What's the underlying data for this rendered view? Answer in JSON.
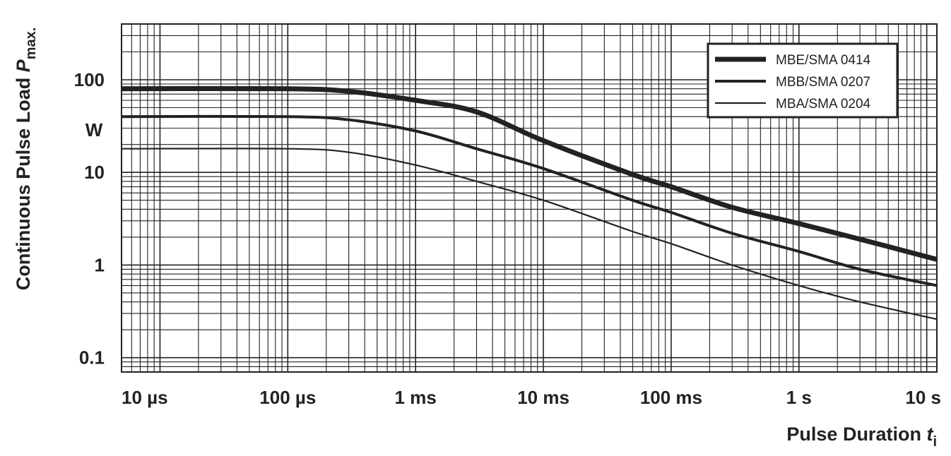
{
  "chart_data": {
    "type": "line",
    "xscale": "log",
    "yscale": "log",
    "xlim": [
      "5 µs",
      "12 s"
    ],
    "ylim": [
      0.07,
      400
    ],
    "grid": true,
    "legend_position": "top-right",
    "xlabel": {
      "text": "Pulse Duration ",
      "var": "t",
      "sub": "i"
    },
    "ylabel": {
      "text": "Continuous Pulse Load ",
      "var": "P",
      "sub": "max."
    },
    "x_ticks": [
      "10 µs",
      "100 µs",
      "1 ms",
      "10 ms",
      "100 ms",
      "1 s",
      "10 s"
    ],
    "y_ticks": [
      "100",
      "10",
      "1",
      "0.1"
    ],
    "y_unit": "W",
    "series": [
      {
        "name": "MBE/SMA 0414",
        "color": "#222222",
        "x": [
          "5 µs",
          "100 µs",
          "300 µs",
          "1 ms",
          "3 ms",
          "10 ms",
          "50 ms",
          "100 ms",
          "300 ms",
          "1 s",
          "3 s",
          "12 s"
        ],
        "y": [
          80,
          80,
          75,
          60,
          45,
          22,
          9.5,
          7,
          4.2,
          2.8,
          1.9,
          1.15
        ]
      },
      {
        "name": "MBB/SMA 0207",
        "color": "#222222",
        "x": [
          "5 µs",
          "100 µs",
          "300 µs",
          "1 ms",
          "3 ms",
          "10 ms",
          "50 ms",
          "100 ms",
          "300 ms",
          "1 s",
          "3 s",
          "12 s"
        ],
        "y": [
          40,
          40,
          37,
          28,
          18,
          11,
          5,
          3.7,
          2.2,
          1.4,
          0.9,
          0.6
        ]
      },
      {
        "name": "MBA/SMA 0204",
        "color": "#222222",
        "x": [
          "5 µs",
          "100 µs",
          "300 µs",
          "1 ms",
          "3 ms",
          "10 ms",
          "50 ms",
          "100 ms",
          "300 ms",
          "1 s",
          "3 s",
          "12 s"
        ],
        "y": [
          18,
          18,
          16.5,
          12,
          8,
          5,
          2.3,
          1.7,
          1,
          0.6,
          0.4,
          0.26
        ]
      }
    ]
  }
}
